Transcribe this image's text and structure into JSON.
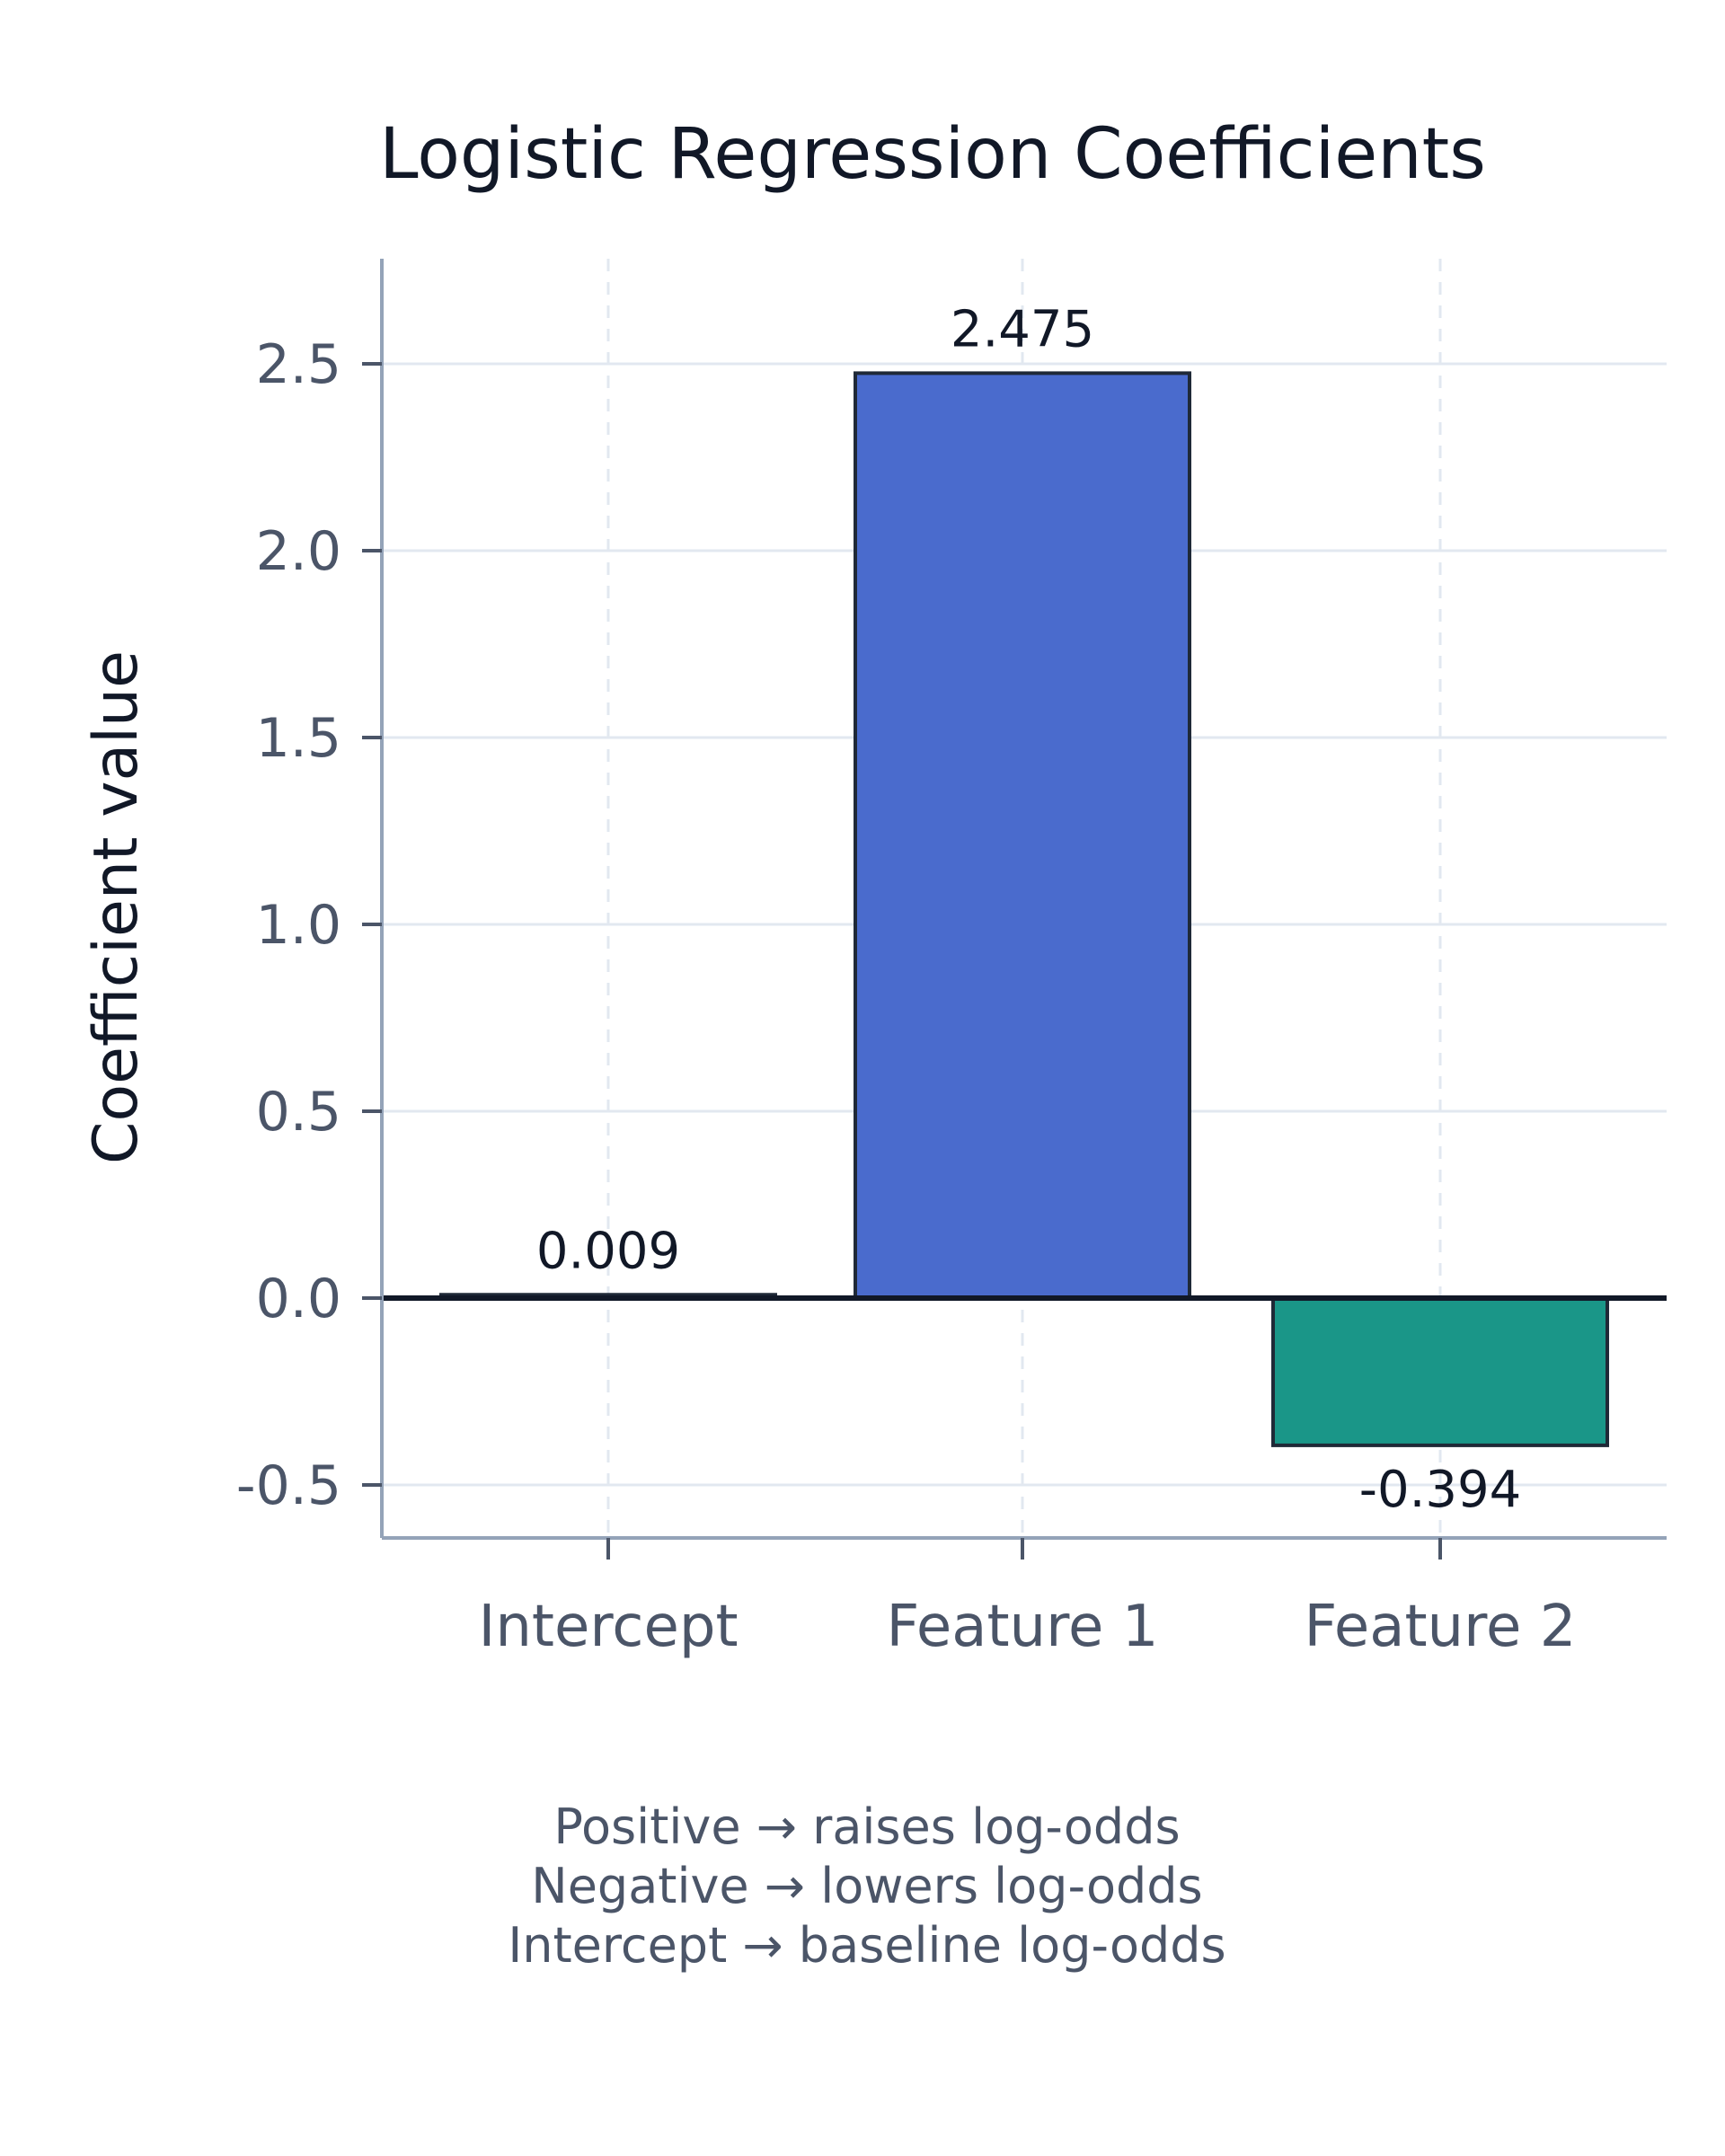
{
  "chart_data": {
    "type": "bar",
    "title": "Logistic Regression Coefficients",
    "xlabel": "",
    "ylabel": "Coefficient value",
    "categories": [
      "Intercept",
      "Feature 1",
      "Feature 2"
    ],
    "values": [
      0.009,
      2.475,
      -0.394
    ],
    "value_labels": [
      "0.009",
      "2.475",
      "-0.394"
    ],
    "ylim": [
      -0.63,
      2.8
    ],
    "yticks": [
      -0.5,
      0.0,
      0.5,
      1.0,
      1.5,
      2.0,
      2.5
    ],
    "ytick_labels": [
      "-0.5",
      "0.0",
      "0.5",
      "1.0",
      "1.5",
      "2.0",
      "2.5"
    ],
    "grid": true,
    "zero_line": true,
    "colors": {
      "positive": "#4a6bcd",
      "negative": "#1a9688",
      "bar_edge": "#1f2937",
      "grid": "#e2e8f0",
      "axis": "#94a3b8"
    },
    "annotations": [
      "Positive → raises log-odds",
      "Negative → lowers log-odds",
      "Intercept → baseline log-odds"
    ]
  }
}
